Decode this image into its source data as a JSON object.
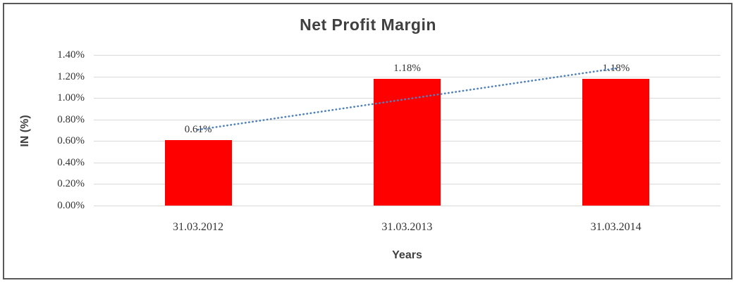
{
  "frame": {
    "border_color": "#595959",
    "background": "#ffffff"
  },
  "chart_data": {
    "type": "bar",
    "title": "Net Profit Margin",
    "xlabel": "Years",
    "ylabel": "IN (%)",
    "categories": [
      "31.03.2012",
      "31.03.2013",
      "31.03.2014"
    ],
    "values": [
      0.61,
      1.18,
      1.18
    ],
    "data_labels": [
      "0.61%",
      "1.18%",
      "1.18%"
    ],
    "yticks": [
      "0.00%",
      "0.20%",
      "0.40%",
      "0.60%",
      "0.80%",
      "1.00%",
      "1.20%",
      "1.40%"
    ],
    "ytick_values": [
      0.0,
      0.2,
      0.4,
      0.6,
      0.8,
      1.0,
      1.2,
      1.4
    ],
    "ylim": [
      0,
      1.4
    ],
    "grid": true,
    "legend": "none",
    "bar_color": "#ff0000",
    "gridline_color": "#d9d9d9",
    "title_color": "#404040",
    "label_color": "#333333",
    "trendline": {
      "type": "linear",
      "style": "dotted",
      "color": "#4f81bd"
    }
  }
}
